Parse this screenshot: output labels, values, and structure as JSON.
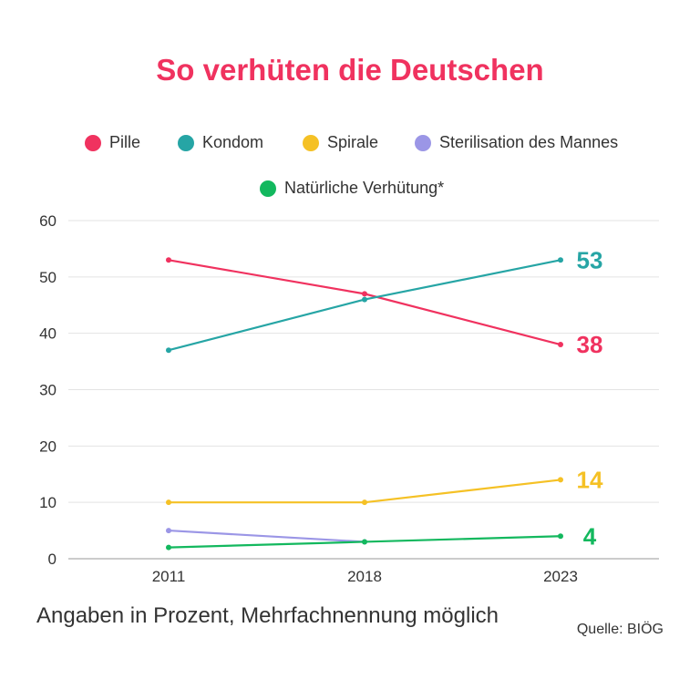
{
  "chart_data": {
    "type": "line",
    "title": "So verhüten die Deutschen",
    "categories": [
      "2011",
      "2018",
      "2023"
    ],
    "ylim": [
      0,
      60
    ],
    "yticks": [
      0,
      10,
      20,
      30,
      40,
      50,
      60
    ],
    "grid": true,
    "legend_position": "top",
    "series": [
      {
        "name": "Pille",
        "values": [
          53,
          47,
          38
        ],
        "color": "#f0325f",
        "end_label": "38"
      },
      {
        "name": "Kondom",
        "values": [
          37,
          46,
          53
        ],
        "color": "#26a5a5",
        "end_label": "53"
      },
      {
        "name": "Spirale",
        "values": [
          10,
          10,
          14
        ],
        "color": "#f5c125",
        "end_label": "14"
      },
      {
        "name": "Sterilisation des Mannes",
        "values": [
          5,
          3,
          null
        ],
        "color": "#9b96e6",
        "end_label": ""
      },
      {
        "name": "Natürliche Verhütung*",
        "values": [
          2,
          3,
          4
        ],
        "color": "#13b85e",
        "end_label": "4"
      }
    ]
  },
  "note": "Angaben in Prozent, Mehrfachnennung möglich",
  "source": "Quelle: BIÖG"
}
